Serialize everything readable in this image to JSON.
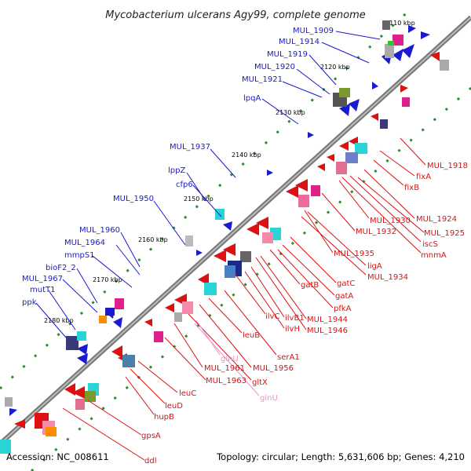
{
  "title": "Mycobacterium ulcerans Agy99, complete genome",
  "footer": {
    "accession": "Accession: NC_008611",
    "summary": "Topology: circular; Length: 5,631,606 bp; Genes: 4,210"
  },
  "colors": {
    "forward": "#1a1ad0",
    "reverse": "#dd1111",
    "rna": "#f08fc8",
    "backbone": "#777777",
    "tick": "#2e8b2e"
  },
  "ticks": [
    "2110 kbp",
    "2120 kbp",
    "2130 kbp",
    "2140 kbp",
    "2150 kbp",
    "2160 kbp",
    "2170 kbp",
    "2180 kbp"
  ],
  "labels_forward": [
    "MUL_1909",
    "MUL_1914",
    "MUL_1919",
    "MUL_1920",
    "MUL_1921",
    "lpqA",
    "MUL_1937",
    "lppZ",
    "cfp6",
    "MUL_1950",
    "MUL_1960",
    "MUL_1964",
    "mmpS1",
    "bioF2_2",
    "MUL_1967",
    "mutT1",
    "ppk"
  ],
  "labels_reverse": [
    "MUL_1918",
    "fixA",
    "fixB",
    "MUL_1924",
    "MUL_1925",
    "iscS",
    "mnmA",
    "MUL_1930",
    "MUL_1932",
    "MUL_1935",
    "ligA",
    "MUL_1934",
    "gatC",
    "gatA",
    "pfkA",
    "gatB",
    "MUL_1944",
    "MUL_1946",
    "ilvB1",
    "ilvH",
    "ilvC",
    "serA1",
    "leuB",
    "MUL_1956",
    "gltX",
    "MUL_1961",
    "MUL_1963",
    "leuC",
    "leuD",
    "hupB",
    "gpsA",
    "ddl"
  ],
  "labels_rna": [
    "glnU",
    "glnU"
  ]
}
